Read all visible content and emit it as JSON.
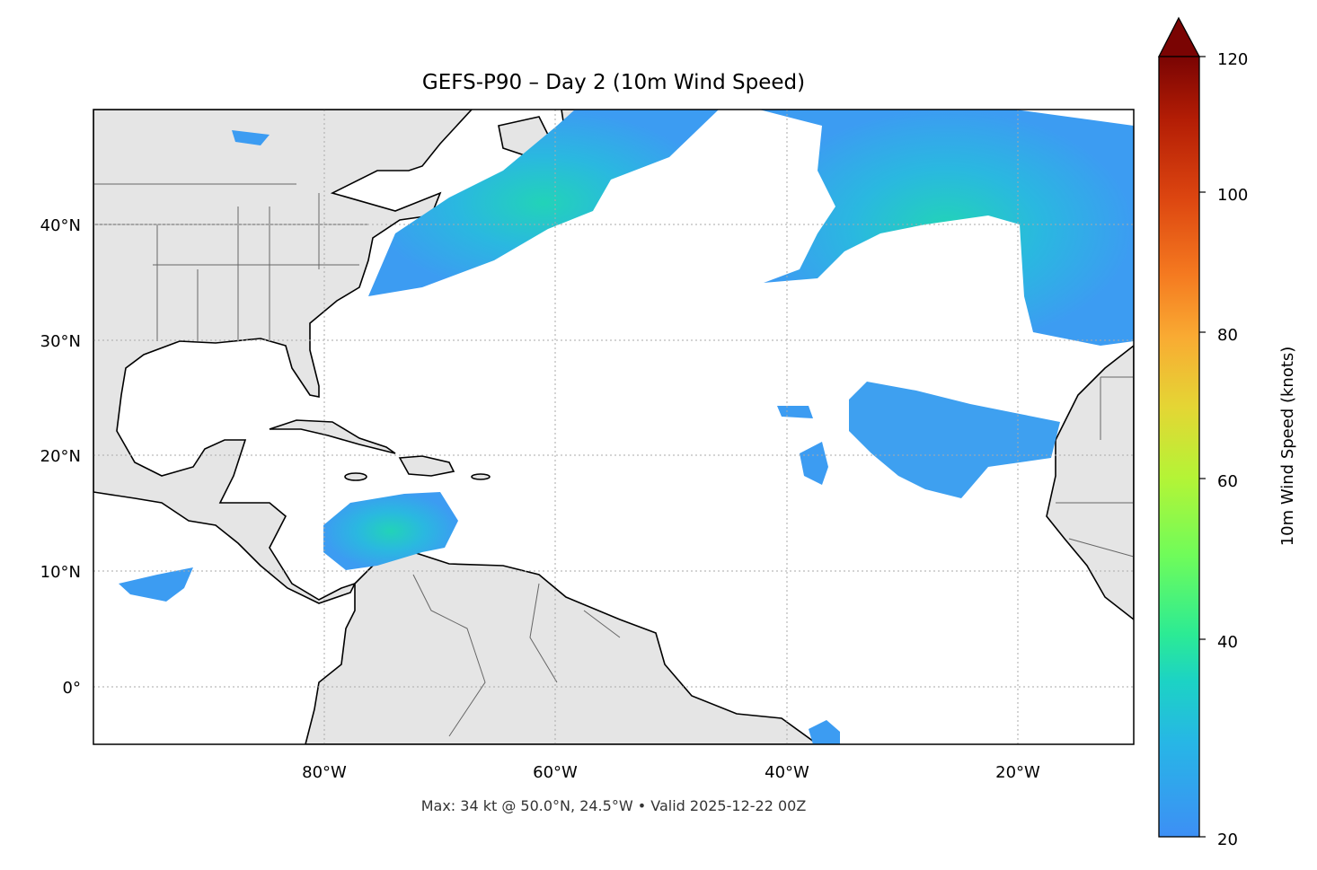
{
  "title": "GEFS-P90 – Day 2 (10m Wind Speed)",
  "footer": "Max: 34 kt @ 50.0°N, 24.5°W • Valid 2025-12-22 00Z",
  "map": {
    "extent": {
      "lon_min": -100,
      "lon_max": -10,
      "lat_min": -5,
      "lat_max": 50
    },
    "lon_tick_labels": [
      "80°W",
      "60°W",
      "40°W",
      "20°W"
    ],
    "lat_tick_labels": [
      "40°N",
      "30°N",
      "20°N",
      "10°N",
      "0°"
    ],
    "land_color": "#e5e5e5",
    "gridlines": "dotted",
    "max_wind": {
      "value_kt": 34,
      "lat": 50.0,
      "lon": -24.5
    }
  },
  "colorbar": {
    "label": "10m Wind Speed (knots)",
    "ticks": [
      "120",
      "100",
      "80",
      "60",
      "40",
      "20"
    ],
    "range": [
      20,
      120
    ],
    "extend": "max",
    "colors": [
      "#3d8ff5",
      "#27b6e6",
      "#1cd3c4",
      "#2ceb94",
      "#6ffc5a",
      "#b4f436",
      "#e4d634",
      "#f9ab33",
      "#f57a20",
      "#dc4510",
      "#b31d05",
      "#7a0403"
    ]
  },
  "wind_color": "#3c9cf2"
}
